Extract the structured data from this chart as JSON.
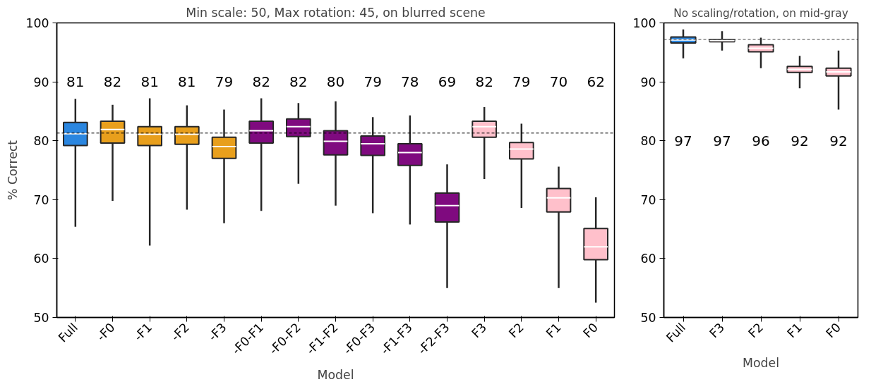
{
  "chart_data": [
    {
      "type": "box",
      "title": "Min scale: 50, Max rotation: 45, on blurred scene",
      "xlabel": "Model",
      "ylabel": "% Correct",
      "categories": [
        "Full",
        "-F0",
        "-F1",
        "-F2",
        "-F3",
        "-F0-F1",
        "-F0-F2",
        "-F1-F2",
        "-F0-F3",
        "-F1-F3",
        "-F2-F3",
        "F3",
        "F2",
        "F1",
        "F0"
      ],
      "colors": [
        "#2a86e0",
        "#e89f1c",
        "#e89f1c",
        "#e89f1c",
        "#e89f1c",
        "#7f0a7f",
        "#7f0a7f",
        "#7f0a7f",
        "#7f0a7f",
        "#7f0a7f",
        "#7f0a7f",
        "#ffc0cb",
        "#ffc0cb",
        "#ffc0cb",
        "#ffc0cb"
      ],
      "boxes": [
        {
          "low": 65.4,
          "q1": 79.2,
          "median": 81.2,
          "q3": 83.1,
          "high": 87.1
        },
        {
          "low": 69.8,
          "q1": 79.6,
          "median": 81.9,
          "q3": 83.3,
          "high": 86.1
        },
        {
          "low": 62.2,
          "q1": 79.2,
          "median": 81.1,
          "q3": 82.4,
          "high": 87.2
        },
        {
          "low": 68.3,
          "q1": 79.4,
          "median": 81.1,
          "q3": 82.4,
          "high": 86.0
        },
        {
          "low": 66.0,
          "q1": 77.0,
          "median": 79.0,
          "q3": 80.6,
          "high": 85.3
        },
        {
          "low": 68.1,
          "q1": 79.6,
          "median": 81.7,
          "q3": 83.3,
          "high": 87.2
        },
        {
          "low": 72.7,
          "q1": 80.7,
          "median": 82.4,
          "q3": 83.7,
          "high": 86.4
        },
        {
          "low": 69.0,
          "q1": 77.6,
          "median": 79.9,
          "q3": 81.7,
          "high": 86.7
        },
        {
          "low": 67.7,
          "q1": 77.5,
          "median": 79.5,
          "q3": 80.8,
          "high": 84.0
        },
        {
          "low": 65.8,
          "q1": 75.8,
          "median": 78.0,
          "q3": 79.5,
          "high": 84.3
        },
        {
          "low": 55.0,
          "q1": 66.2,
          "median": 69.0,
          "q3": 71.1,
          "high": 76.0
        },
        {
          "low": 73.5,
          "q1": 80.6,
          "median": 82.4,
          "q3": 83.3,
          "high": 85.7
        },
        {
          "low": 68.6,
          "q1": 76.9,
          "median": 78.6,
          "q3": 79.7,
          "high": 82.9
        },
        {
          "low": 55.0,
          "q1": 67.9,
          "median": 70.3,
          "q3": 71.9,
          "high": 75.6
        },
        {
          "low": 52.5,
          "q1": 59.8,
          "median": 62.0,
          "q3": 65.1,
          "high": 70.4
        }
      ],
      "annotations": [
        "81",
        "82",
        "81",
        "81",
        "79",
        "82",
        "82",
        "80",
        "79",
        "78",
        "69",
        "82",
        "79",
        "70",
        "62"
      ],
      "ref_lines": [
        {
          "axis": "y",
          "value": 81.3,
          "color": "#000000",
          "line_style": "dashed"
        }
      ],
      "ylim": [
        50,
        100
      ],
      "yticks": [
        50,
        60,
        70,
        80,
        90,
        100
      ],
      "grid": false
    },
    {
      "type": "box",
      "title": "No scaling/rotation, on mid-gray",
      "xlabel": "Model",
      "categories": [
        "Full",
        "F3",
        "F2",
        "F1",
        "F0"
      ],
      "colors": [
        "#2a86e0",
        "#ffc0cb",
        "#ffc0cb",
        "#ffc0cb",
        "#ffc0cb"
      ],
      "boxes": [
        {
          "low": 94.0,
          "q1": 96.6,
          "median": 97.1,
          "q3": 97.6,
          "high": 98.9
        },
        {
          "low": 95.3,
          "q1": 96.8,
          "median": 97.0,
          "q3": 97.2,
          "high": 98.6
        },
        {
          "low": 92.3,
          "q1": 95.1,
          "median": 95.7,
          "q3": 96.3,
          "high": 97.5
        },
        {
          "low": 88.9,
          "q1": 91.6,
          "median": 92.1,
          "q3": 92.6,
          "high": 94.4
        },
        {
          "low": 85.3,
          "q1": 91.0,
          "median": 91.7,
          "q3": 92.3,
          "high": 95.3
        }
      ],
      "annotations": [
        "97",
        "97",
        "96",
        "92",
        "92"
      ],
      "ref_lines": [
        {
          "axis": "y",
          "value": 97.2,
          "color": "#404040",
          "line_style": "dashed"
        }
      ],
      "ylim": [
        50,
        100
      ],
      "yticks": [
        50,
        60,
        70,
        80,
        90,
        100
      ],
      "grid": false
    }
  ]
}
